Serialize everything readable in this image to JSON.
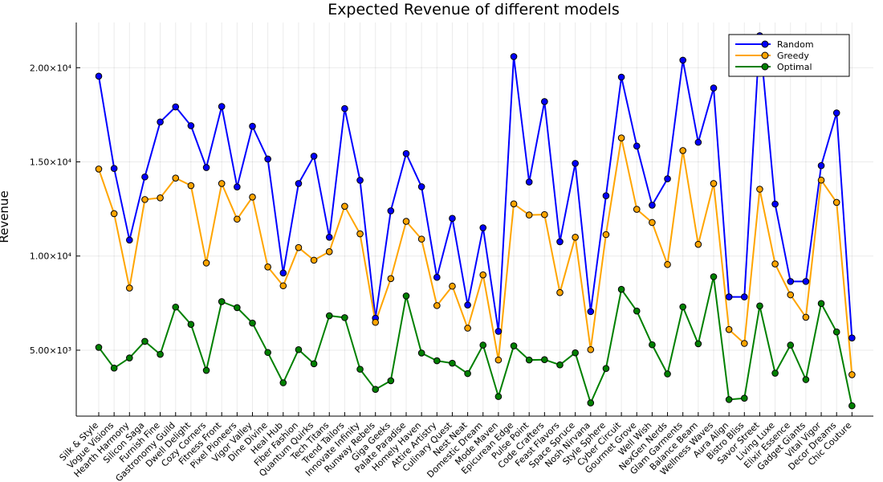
{
  "chart_data": {
    "type": "line",
    "title": "Expected Revenue of different models",
    "xlabel": "",
    "ylabel": "Revenue",
    "categories": [
      "Silk & Style",
      "Vogue Visions",
      "Hearth Harmony",
      "Silicon Saga",
      "Furnish Fine",
      "Gastronomy Guild",
      "Dwell Delight",
      "Cozy Corners",
      "Fitness Front",
      "Pixel Pioneers",
      "Vigor Valley",
      "Dine Divine",
      "Heal Hub",
      "Fiber Fashion",
      "Quantum Quirks",
      "Tech Titans",
      "Trend Tailors",
      "Innovate Infinity",
      "Runway Rebels",
      "Giga Geeks",
      "Palate Paradise",
      "Homely Haven",
      "Attire Artistry",
      "Culinary Quest",
      "Nest Neat",
      "Domestic Dream",
      "Mode Maven",
      "Epicurean Edge",
      "Pulse Point",
      "Code Crafters",
      "Feast Flavors",
      "Space Spruce",
      "Nosh Nirvana",
      "Style Sphere",
      "Cyber Circuit",
      "Gourmet Grove",
      "Well Wish",
      "NexGen Nerds",
      "Glam Garments",
      "Balance Beam",
      "Wellness Waves",
      "Aura Align",
      "Bistro Bliss",
      "Savor Street",
      "Living Luxe",
      "Elixir Essence",
      "Gadget Giants",
      "Vital Vigor",
      "Decor Dreams",
      "Chic Couture"
    ],
    "series": [
      {
        "name": "Random",
        "color": "#0000ff",
        "values": [
          19550,
          14650,
          10850,
          14200,
          17120,
          17920,
          16920,
          14700,
          17940,
          13670,
          16890,
          15150,
          9100,
          13850,
          15300,
          11000,
          17830,
          14020,
          6700,
          12400,
          15440,
          13680,
          8870,
          12000,
          7400,
          11500,
          6000,
          20590,
          13930,
          18200,
          10760,
          14920,
          7050,
          13200,
          19500,
          15840,
          12700,
          14100,
          20400,
          16040,
          18920,
          7830,
          7830,
          21700,
          12760,
          8650,
          8650,
          14800,
          17600,
          5650
        ]
      },
      {
        "name": "Greedy",
        "color": "#ffa500",
        "values": [
          14620,
          12250,
          8300,
          13000,
          13090,
          14140,
          13740,
          9630,
          13850,
          11960,
          13130,
          9420,
          8420,
          10450,
          9780,
          10230,
          12640,
          11180,
          6480,
          8800,
          11840,
          10900,
          7370,
          8400,
          6170,
          9000,
          4480,
          12770,
          12180,
          12200,
          8060,
          11000,
          5030,
          11140,
          16270,
          12480,
          11780,
          9550,
          15600,
          10620,
          13850,
          6100,
          5360,
          13550,
          9580,
          7940,
          6750,
          14030,
          12850,
          3700
        ]
      },
      {
        "name": "Optimal",
        "color": "#008000",
        "values": [
          5150,
          4050,
          4590,
          5470,
          4780,
          7290,
          6370,
          3930,
          7580,
          7260,
          6440,
          4880,
          3270,
          5030,
          4280,
          6830,
          6730,
          3990,
          2920,
          3380,
          7880,
          4850,
          4440,
          4310,
          3760,
          5270,
          2540,
          5230,
          4480,
          4500,
          4220,
          4860,
          2200,
          4030,
          8230,
          7080,
          5290,
          3740,
          7300,
          5340,
          8900,
          2380,
          2450,
          7350,
          3780,
          5270,
          3440,
          7480,
          5970,
          2050
        ]
      }
    ],
    "y_ticks": [
      5000,
      10000,
      15000,
      20000
    ],
    "y_tick_labels": [
      "5.00×10³",
      "1.00×10⁴",
      "1.50×10⁴",
      "2.00×10⁴"
    ],
    "ylim": [
      1500,
      22400
    ],
    "grid": true,
    "legend_position": "top-right"
  }
}
